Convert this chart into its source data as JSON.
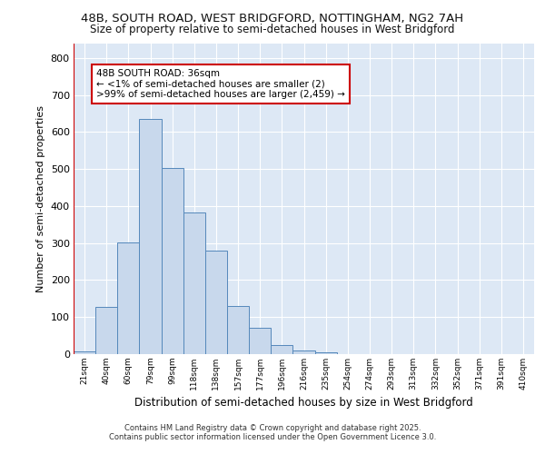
{
  "title1": "48B, SOUTH ROAD, WEST BRIDGFORD, NOTTINGHAM, NG2 7AH",
  "title2": "Size of property relative to semi-detached houses in West Bridgford",
  "xlabel": "Distribution of semi-detached houses by size in West Bridgford",
  "ylabel": "Number of semi-detached properties",
  "bar_labels": [
    "21sqm",
    "40sqm",
    "60sqm",
    "79sqm",
    "99sqm",
    "118sqm",
    "138sqm",
    "157sqm",
    "177sqm",
    "196sqm",
    "216sqm",
    "235sqm",
    "254sqm",
    "274sqm",
    "293sqm",
    "313sqm",
    "332sqm",
    "352sqm",
    "371sqm",
    "391sqm",
    "410sqm"
  ],
  "bar_values": [
    8,
    128,
    302,
    635,
    502,
    383,
    279,
    130,
    70,
    25,
    10,
    5,
    0,
    0,
    0,
    0,
    0,
    0,
    0,
    0,
    0
  ],
  "bar_color": "#c8d8ec",
  "bar_edge_color": "#5588bb",
  "annotation_text": "48B SOUTH ROAD: 36sqm\n← <1% of semi-detached houses are smaller (2)\n>99% of semi-detached houses are larger (2,459) →",
  "ylim": [
    0,
    840
  ],
  "yticks": [
    0,
    100,
    200,
    300,
    400,
    500,
    600,
    700,
    800
  ],
  "footer1": "Contains HM Land Registry data © Crown copyright and database right 2025.",
  "footer2": "Contains public sector information licensed under the Open Government Licence 3.0.",
  "background_color": "#ffffff",
  "plot_bg_color": "#dde8f5",
  "grid_color": "#ffffff",
  "ann_facecolor": "#ffffff",
  "ann_edgecolor": "#cc0000",
  "red_line_color": "#cc0000"
}
